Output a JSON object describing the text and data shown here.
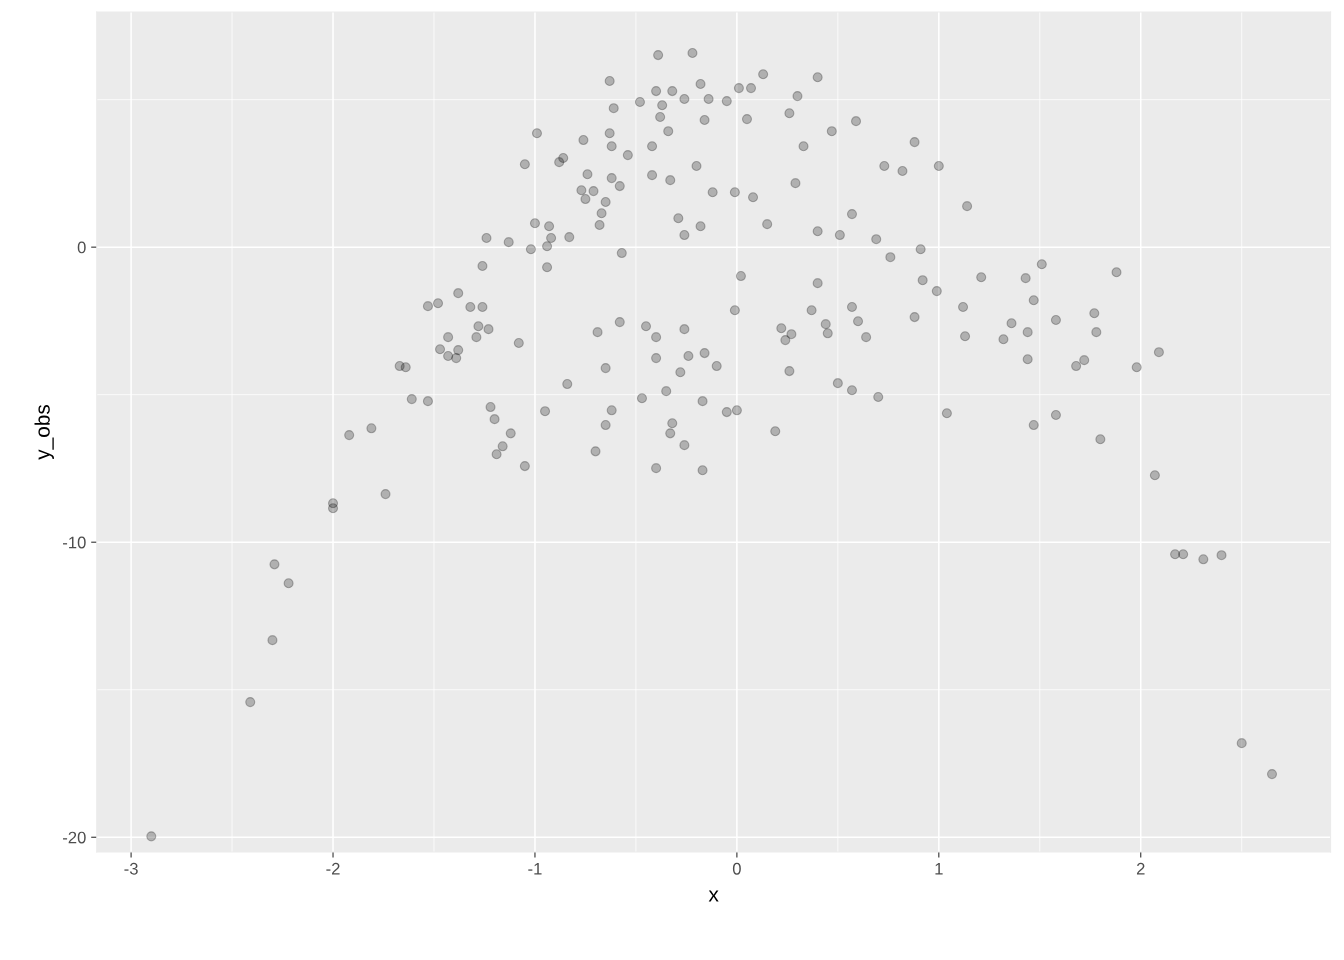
{
  "chart_data": {
    "type": "scatter",
    "xlabel": "x",
    "ylabel": "y_obs",
    "xlim": [
      -3.17,
      2.94
    ],
    "ylim": [
      -20.5,
      7.97
    ],
    "xticks": [
      -3,
      -2,
      -1,
      0,
      1,
      2
    ],
    "yticks": [
      -20,
      -10,
      0
    ],
    "grid": true,
    "marker": "circle",
    "series": [
      {
        "color": "#000000",
        "x": [
          -2.9,
          -2.41,
          -2.3,
          -2.29,
          -2.22,
          -2.0,
          -2.0,
          -1.92,
          -1.81,
          -1.74,
          -1.67,
          -1.64,
          -1.61,
          -1.53,
          -1.53,
          -1.48,
          -1.47,
          -1.43,
          -1.43,
          -1.38,
          -1.38,
          -1.39,
          -1.32,
          -1.29,
          -1.28,
          -1.26,
          -1.26,
          -1.24,
          -1.23,
          -1.22,
          -1.2,
          -1.19,
          -1.16,
          -1.13,
          -1.12,
          -1.08,
          -1.05,
          -1.05,
          -1.02,
          -1.0,
          -0.99,
          -0.95,
          -0.94,
          -0.94,
          -0.93,
          -0.92,
          -0.88,
          -0.86,
          -0.84,
          -0.83,
          -0.77,
          -0.76,
          -0.75,
          -0.74,
          -0.71,
          -0.7,
          -0.69,
          -0.68,
          -0.67,
          -0.65,
          -0.65,
          -0.65,
          -0.63,
          -0.63,
          -0.62,
          -0.62,
          -0.62,
          -0.61,
          -0.58,
          -0.58,
          -0.57,
          -0.54,
          -0.48,
          -0.47,
          -0.45,
          -0.42,
          -0.42,
          -0.4,
          -0.4,
          -0.4,
          -0.4,
          -0.39,
          -0.38,
          -0.37,
          -0.35,
          -0.34,
          -0.33,
          -0.33,
          -0.32,
          -0.32,
          -0.29,
          -0.28,
          -0.26,
          -0.26,
          -0.26,
          -0.26,
          -0.24,
          -0.22,
          -0.2,
          -0.18,
          -0.18,
          -0.17,
          -0.17,
          -0.16,
          -0.16,
          -0.14,
          -0.12,
          -0.1,
          -0.05,
          -0.05,
          -0.01,
          -0.01,
          0.0,
          0.01,
          0.02,
          0.05,
          0.07,
          0.08,
          0.13,
          0.15,
          0.19,
          0.22,
          0.24,
          0.26,
          0.26,
          0.27,
          0.29,
          0.3,
          0.33,
          0.37,
          0.4,
          0.4,
          0.4,
          0.44,
          0.45,
          0.47,
          0.5,
          0.51,
          0.57,
          0.57,
          0.57,
          0.59,
          0.6,
          0.64,
          0.69,
          0.7,
          0.73,
          0.76,
          0.82,
          0.88,
          0.88,
          0.91,
          0.92,
          0.99,
          1.0,
          1.04,
          1.12,
          1.13,
          1.14,
          1.21,
          1.32,
          1.36,
          1.43,
          1.44,
          1.44,
          1.47,
          1.47,
          1.51,
          1.58,
          1.58,
          1.68,
          1.72,
          1.77,
          1.78,
          1.8,
          1.88,
          1.98,
          2.07,
          2.09,
          2.17,
          2.21,
          2.31,
          2.4,
          2.5,
          2.65
        ],
        "values": [
          -19.97,
          -15.42,
          -13.32,
          -10.75,
          -11.39,
          -8.68,
          -8.85,
          -6.37,
          -6.14,
          -8.37,
          -4.03,
          -4.07,
          -5.15,
          -5.22,
          -2.0,
          -1.9,
          -3.46,
          -3.05,
          -3.69,
          -1.56,
          -3.49,
          -3.76,
          -2.03,
          -3.05,
          -2.68,
          -2.03,
          -0.64,
          0.31,
          -2.78,
          -5.42,
          -5.83,
          -7.02,
          -6.75,
          0.17,
          -6.31,
          -3.25,
          -7.42,
          2.81,
          -0.07,
          0.81,
          3.86,
          -5.56,
          -0.68,
          0.03,
          0.71,
          0.31,
          2.88,
          3.02,
          -4.64,
          0.34,
          1.93,
          3.63,
          1.63,
          2.47,
          1.9,
          -6.92,
          -2.88,
          0.75,
          1.15,
          -4.1,
          1.53,
          -6.03,
          5.63,
          3.86,
          3.42,
          -5.53,
          2.34,
          4.71,
          -2.54,
          2.07,
          -0.2,
          3.12,
          4.92,
          -5.12,
          -2.68,
          2.44,
          3.42,
          -3.05,
          -3.76,
          5.29,
          -7.49,
          6.51,
          4.41,
          4.81,
          -4.88,
          3.93,
          2.27,
          -6.31,
          -5.97,
          5.29,
          0.98,
          -4.24,
          -2.78,
          5.02,
          0.41,
          -6.71,
          -3.69,
          6.58,
          2.75,
          5.53,
          0.71,
          -5.22,
          -7.56,
          4.31,
          -3.59,
          5.02,
          1.86,
          -4.03,
          4.95,
          -5.59,
          1.86,
          -2.14,
          -5.53,
          5.39,
          -0.98,
          4.34,
          5.39,
          1.69,
          5.86,
          0.78,
          -6.24,
          -2.75,
          -3.15,
          4.54,
          -4.2,
          -2.95,
          2.17,
          5.12,
          3.42,
          -2.14,
          5.76,
          -1.22,
          0.54,
          -2.61,
          -2.92,
          3.93,
          -4.61,
          0.41,
          -2.03,
          -4.85,
          1.12,
          4.27,
          -2.51,
          -3.05,
          0.27,
          -5.08,
          2.75,
          -0.34,
          2.58,
          3.56,
          -2.37,
          -0.07,
          -1.12,
          -1.49,
          2.75,
          -5.63,
          -2.03,
          -3.02,
          1.39,
          -1.02,
          -3.12,
          -2.58,
          -1.05,
          -3.8,
          -2.88,
          -1.8,
          -6.03,
          -0.58,
          -2.47,
          -5.69,
          -4.03,
          -3.83,
          -2.24,
          -2.88,
          -6.51,
          -0.85,
          -4.07,
          -7.73,
          -3.56,
          -10.41,
          -10.41,
          -10.58,
          -10.44,
          -16.81,
          -17.86
        ]
      }
    ]
  }
}
